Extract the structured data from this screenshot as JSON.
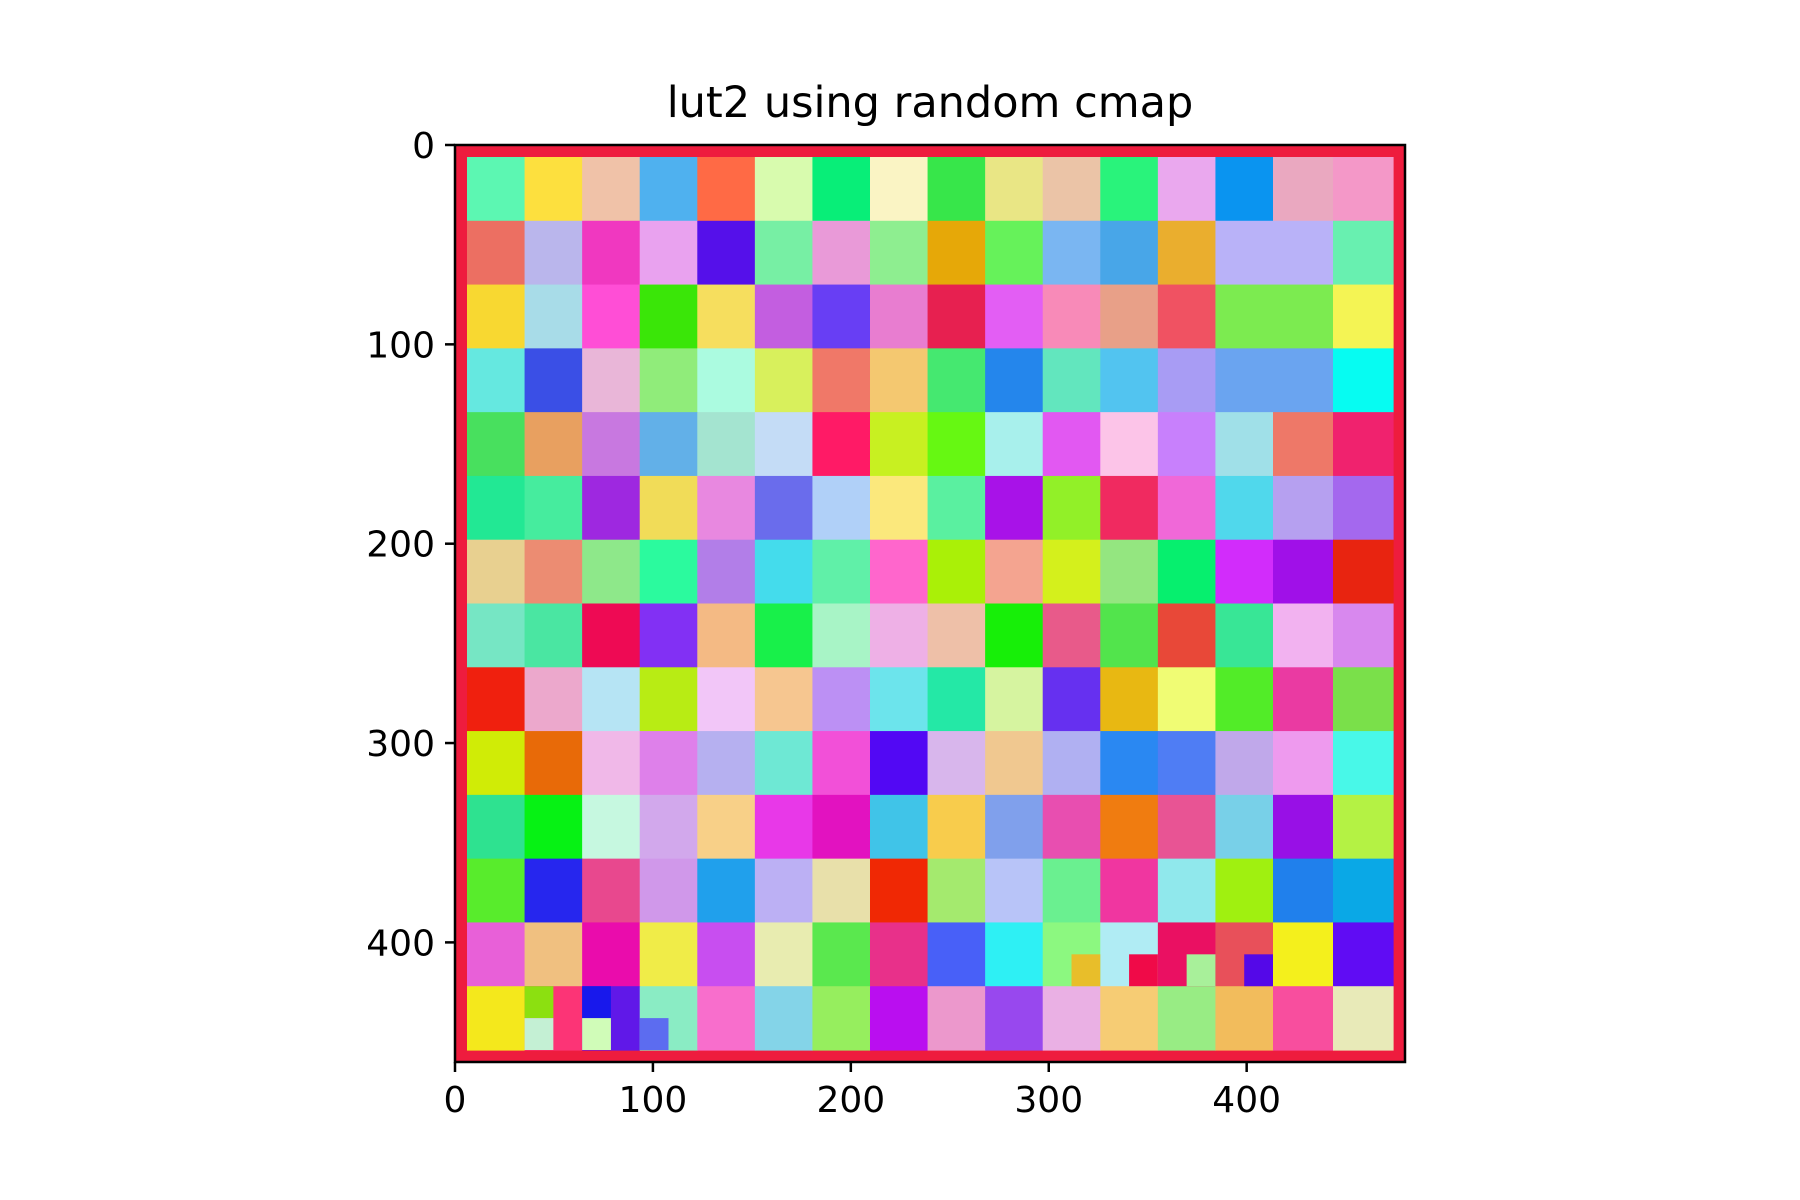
{
  "chart_data": {
    "type": "heatmap",
    "title": "lut2 using random cmap",
    "xlabel": "",
    "ylabel": "",
    "x_range": [
      0,
      480
    ],
    "y_range": [
      460,
      0
    ],
    "x_ticks": [
      0,
      100,
      200,
      300,
      400
    ],
    "y_ticks": [
      0,
      100,
      200,
      300,
      400
    ],
    "border_color": "#ee1c3e",
    "frame_color": "#000000",
    "grid": false,
    "legend": "none",
    "colormap": "random",
    "grid_columns": 14,
    "grid_rows": 14,
    "cell_colors": [
      [
        "#5cf7b2",
        "#fde03e",
        "#f0c2a8",
        "#4fb1ef",
        "#ff6a45",
        "#d8fbae",
        "#08ee78",
        "#faf4c4",
        "#37e64a",
        "#e9e685",
        "#ebc4a7",
        "#29f37b",
        "#eaa8ee",
        "#0a94f0"
      ],
      [
        "#ec6f62",
        "#bab6ec",
        "#f038c0",
        "#e9a2ef",
        "#5510ea",
        "#77efa4",
        "#e99ad8",
        "#8eee90",
        "#e6a808",
        "#66f25a",
        "#7ab6f2",
        "#48a6e8",
        "#eaae2e",
        "#b9b2f8"
      ],
      [
        "#f8d831",
        "#a8dce8",
        "#ff4ed6",
        "#3ae608",
        "#f6de5e",
        "#c35ee0",
        "#683ef4",
        "#e87dd0",
        "#e72050",
        "#e35ef4",
        "#f88ab8",
        "#e8a088",
        "#f05262",
        "#7ceb50"
      ],
      [
        "#65e8e0",
        "#3a4fe6",
        "#e9b6d8",
        "#90ec7a",
        "#abfbe0",
        "#d8f05c",
        "#f07868",
        "#f4c870",
        "#45e870",
        "#2486ec",
        "#62e6be",
        "#52c4f0",
        "#a89cf4",
        "#6aa4f0"
      ],
      [
        "#48e05e",
        "#e8a060",
        "#c878e0",
        "#62b0e8",
        "#a4e4d0",
        "#c4dcf6",
        "#ff1a66",
        "#c8f021",
        "#66f812",
        "#a8f0ec",
        "#e258f2",
        "#fcc4e8",
        "#c880fc",
        "#a0e0e8"
      ],
      [
        "#22e894",
        "#46ec9e",
        "#9e28e0",
        "#f1dc58",
        "#e888e0",
        "#6a6cec",
        "#b0d0f8",
        "#fbe87c",
        "#5af0a0",
        "#a812e8",
        "#92f028",
        "#f02a60",
        "#f068d8",
        "#50d8ec"
      ],
      [
        "#e8d090",
        "#ec8c72",
        "#8ee88a",
        "#2bfa9e",
        "#b27ee8",
        "#44dcec",
        "#60f0a8",
        "#ff66cc",
        "#aaf007",
        "#f4a490",
        "#d4f01c",
        "#94e680",
        "#06ef6e",
        "#d22cfb"
      ],
      [
        "#76e6c4",
        "#4ae6a2",
        "#ee0a54",
        "#8230f4",
        "#f4ba84",
        "#18f04a",
        "#a8f4c6",
        "#eeb0e6",
        "#eec0a8",
        "#17ef08",
        "#e85a8a",
        "#52e44c",
        "#e84838",
        "#38e696"
      ],
      [
        "#f0200e",
        "#eca8cc",
        "#b6e4f4",
        "#b8ec14",
        "#f2c6f8",
        "#f6c690",
        "#bc90f4",
        "#6ce4ec",
        "#24e8a6",
        "#d6f4a0",
        "#6630f0",
        "#e8b812",
        "#f0fc74",
        "#52ec28"
      ],
      [
        "#d0ec06",
        "#e86a08",
        "#f0b8e8",
        "#de80ea",
        "#b6b0f0",
        "#6ee8d4",
        "#f250d8",
        "#5208f4",
        "#d8b6ec",
        "#f0c890",
        "#b0b0f2",
        "#2a88f2",
        "#4f7df4",
        "#c0a8ea"
      ],
      [
        "#2ee290",
        "#06f214",
        "#c6f8e0",
        "#d2a8ec",
        "#f8d088",
        "#e838e8",
        "#e212c0",
        "#40c4e8",
        "#f8cc4c",
        "#80a0ec",
        "#e84eb0",
        "#f07c10",
        "#e85494",
        "#78d0e8"
      ],
      [
        "#58ec2c",
        "#2626ee",
        "#e8488e",
        "#d098ea",
        "#20a0ec",
        "#bcb0f4",
        "#e8e0aa",
        "#f02804",
        "#a4ea6e",
        "#b8c4f8",
        "#6af090",
        "#f036a0",
        "#90e8ec",
        "#a0f010"
      ],
      [
        "#e860d8",
        "#f0c080",
        "#ea0cac",
        "#f0ec48",
        "#c84ef0",
        "#e8ecb0",
        "#5ae84e",
        "#e8308a",
        "#4860f8",
        "#2ef0f4",
        "#8cf880",
        "#b0ecf4",
        "#ea1062",
        "#e8505a"
      ],
      [
        "#f4e81c",
        "#fc3476",
        "#6018e8",
        "#8aecc4",
        "#f86ecc",
        "#84d4e8",
        "#96ee5e",
        "#ba0ef0",
        "#ec98cc",
        "#9848ee",
        "#eab0e4",
        "#f6cc74",
        "#98ec84",
        "#f2bc5c"
      ]
    ],
    "right_cell_colors": [
      [
        "#eaa8c0",
        "#f498c8"
      ],
      [
        "#b9b2f8",
        "#68f0b0"
      ],
      [
        "#7ceb50",
        "#f4f454"
      ],
      [
        "#6aa4f0",
        "#06fcf2"
      ],
      [
        "#ee7868",
        "#f0226e"
      ],
      [
        "#b6a0f0",
        "#a468ee"
      ],
      [
        "#a010e8",
        "#e82410"
      ],
      [
        "#f2b2f0",
        "#d888ee"
      ],
      [
        "#ea3aa2",
        "#7ae04a"
      ],
      [
        "#ee9aee",
        "#48f8e8"
      ],
      [
        "#9810e6",
        "#b4f244"
      ],
      [
        "#2080ec",
        "#0aa8e6"
      ],
      [
        "#f4f01c",
        "#600cf4"
      ],
      [
        "#f84e9e",
        "#e8eab8"
      ]
    ],
    "small_cells": [
      {
        "row": 12.5,
        "col": 10.5,
        "color": "#e8be2a"
      },
      {
        "row": 12.5,
        "col": 11.5,
        "color": "#f00a48"
      },
      {
        "row": 12.5,
        "col": 12.5,
        "color": "#a8f09a"
      },
      {
        "row": 12.5,
        "col": 13.5,
        "color": "#5408e8"
      },
      {
        "row": 13,
        "col": 1,
        "color": "#8ce010"
      },
      {
        "row": 13,
        "col": 2,
        "color": "#1818ec"
      },
      {
        "row": 13.5,
        "col": 1,
        "color": "#c4f0d4"
      },
      {
        "row": 13.5,
        "col": 2,
        "color": "#d0fcb8"
      },
      {
        "row": 13.5,
        "col": 3,
        "color": "#5c6cf0"
      }
    ]
  }
}
